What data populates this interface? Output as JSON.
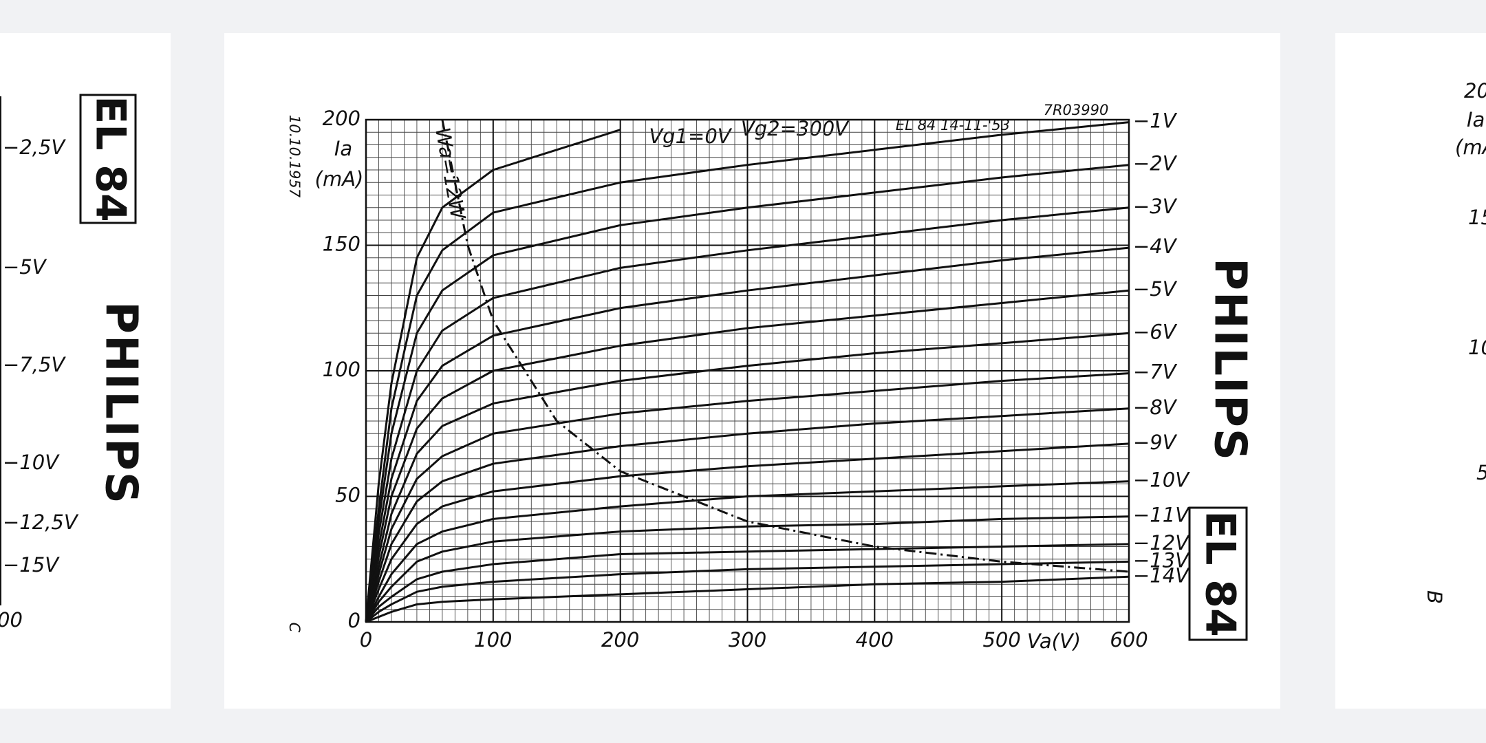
{
  "chart_data": {
    "type": "line",
    "x": [
      0,
      10,
      20,
      40,
      60,
      100,
      200,
      300,
      400,
      500,
      600
    ],
    "series": [
      {
        "color": "#111111",
        "values": [
          0,
          55,
          95,
          145,
          165,
          180,
          196,
          null,
          null,
          null,
          null
        ]
      },
      {
        "name": "−1V",
        "color": "#111111",
        "values": [
          0,
          45,
          85,
          130,
          148,
          163,
          175,
          182,
          188,
          194,
          199
        ]
      },
      {
        "name": "−2V",
        "color": "#111111",
        "values": [
          0,
          40,
          75,
          115,
          132,
          146,
          158,
          165,
          171,
          177,
          182
        ]
      },
      {
        "name": "−3V",
        "color": "#111111",
        "values": [
          0,
          35,
          65,
          100,
          116,
          129,
          141,
          148,
          154,
          160,
          165
        ]
      },
      {
        "name": "−4V",
        "color": "#111111",
        "values": [
          0,
          30,
          57,
          88,
          102,
          114,
          125,
          132,
          138,
          144,
          149
        ]
      },
      {
        "name": "−5V",
        "color": "#111111",
        "values": [
          0,
          26,
          50,
          77,
          89,
          100,
          110,
          117,
          122,
          127,
          132
        ]
      },
      {
        "name": "−6V",
        "color": "#111111",
        "values": [
          0,
          22,
          43,
          67,
          78,
          87,
          96,
          102,
          107,
          111,
          115
        ]
      },
      {
        "name": "−7V",
        "color": "#111111",
        "values": [
          0,
          19,
          37,
          57,
          66,
          75,
          83,
          88,
          92,
          96,
          99
        ]
      },
      {
        "name": "−8V",
        "color": "#111111",
        "values": [
          0,
          16,
          31,
          48,
          56,
          63,
          70,
          75,
          79,
          82,
          85
        ]
      },
      {
        "name": "−9V",
        "color": "#111111",
        "values": [
          0,
          13,
          25,
          39,
          46,
          52,
          58,
          62,
          65,
          68,
          71
        ]
      },
      {
        "name": "−10V",
        "color": "#111111",
        "values": [
          0,
          10,
          19,
          31,
          36,
          41,
          46,
          50,
          52,
          54,
          56
        ]
      },
      {
        "name": "−11V",
        "color": "#111111",
        "values": [
          0,
          8,
          14,
          24,
          28,
          32,
          36,
          38,
          39,
          41,
          42
        ]
      },
      {
        "name": "−12V",
        "color": "#111111",
        "values": [
          0,
          6,
          10,
          17,
          20,
          23,
          27,
          28,
          29,
          30,
          31
        ]
      },
      {
        "name": "−13V",
        "color": "#111111",
        "values": [
          0,
          4,
          7,
          12,
          14,
          16,
          19,
          21,
          22,
          23,
          24
        ]
      },
      {
        "name": "−14V",
        "color": "#111111",
        "values": [
          0,
          2,
          4,
          7,
          8,
          9,
          11,
          13,
          15,
          16,
          18
        ]
      },
      {
        "name": "Wa=12W",
        "color": "#111111",
        "dash": "dashdot",
        "x": [
          60,
          80,
          100,
          150,
          200,
          300,
          400,
          500,
          600
        ],
        "values": [
          200,
          150,
          120,
          80,
          60,
          40,
          30,
          24,
          20
        ]
      }
    ],
    "xlim": [
      0,
      600
    ],
    "ylim": [
      0,
      200
    ],
    "xticks": [
      0,
      100,
      200,
      300,
      400,
      500,
      600
    ],
    "yticks": [
      0,
      50,
      100,
      150,
      200
    ],
    "xlabel": "Va(V)",
    "ylabel": "Ia",
    "ylabel_unit": "(mA)",
    "grid": true,
    "minor_grid": true,
    "annotations": [
      "Vg1=0V",
      "Vg2=300V",
      "EL 84 14-11-'53",
      "7R03990",
      "10.10.1957",
      "C"
    ],
    "brand": "PHILIPS",
    "tube": "EL 84"
  },
  "left_page": {
    "scale_labels": [
      "−2,5V",
      "−5V",
      "−7,5V",
      "−10V",
      "−12,5V",
      "−15V"
    ],
    "axis_end": "00",
    "tube": "EL 84",
    "brand": "PHILIPS"
  },
  "right_page": {
    "labels": [
      "20",
      "Ia",
      "(mA",
      "15",
      "10",
      "5",
      "B"
    ]
  }
}
